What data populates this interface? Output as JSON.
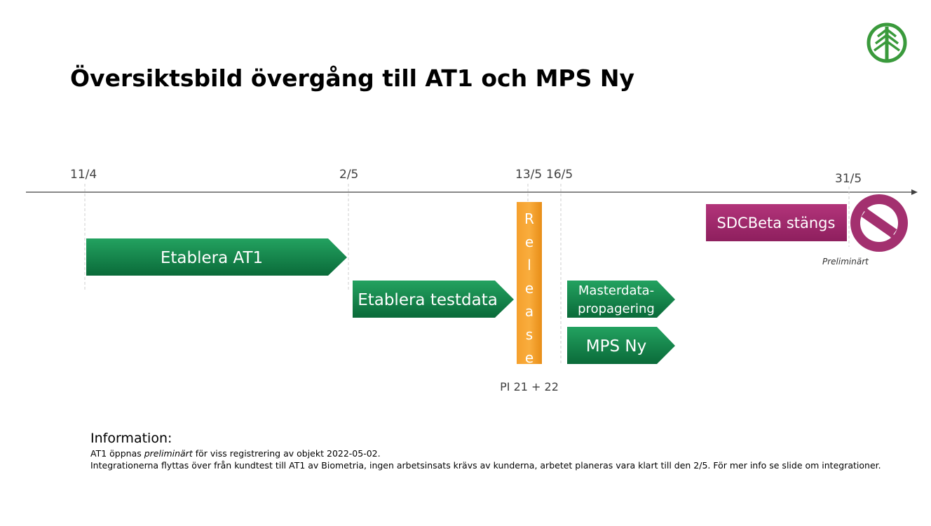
{
  "title": "Översiktsbild övergång till AT1 och MPS Ny",
  "timeline": {
    "dates": [
      "11/4",
      "2/5",
      "13/5",
      "16/5",
      "31/5"
    ]
  },
  "tasks": [
    {
      "label": "Etablera AT1"
    },
    {
      "label": "Etablera testdata"
    },
    {
      "lines": [
        "Masterdata-",
        "propagering"
      ]
    },
    {
      "label": "MPS Ny"
    }
  ],
  "release": {
    "label": "Release",
    "note": "PI 21 + 22"
  },
  "closure": {
    "label": "SDCBeta stängs",
    "note": "Preliminärt"
  },
  "information": {
    "heading": "Information:",
    "lines": [
      [
        "AT1 öppnas ",
        "preliminärt",
        " för viss registrering av objekt 2022-05-02."
      ],
      [
        "Integrationerna flyttas över från kundtest till AT1 av Biometria, ingen arbetsinsats krävs av kunderna, arbetet planeras vara klart till den 2/5. För mer info se slide om integrationer."
      ]
    ]
  }
}
